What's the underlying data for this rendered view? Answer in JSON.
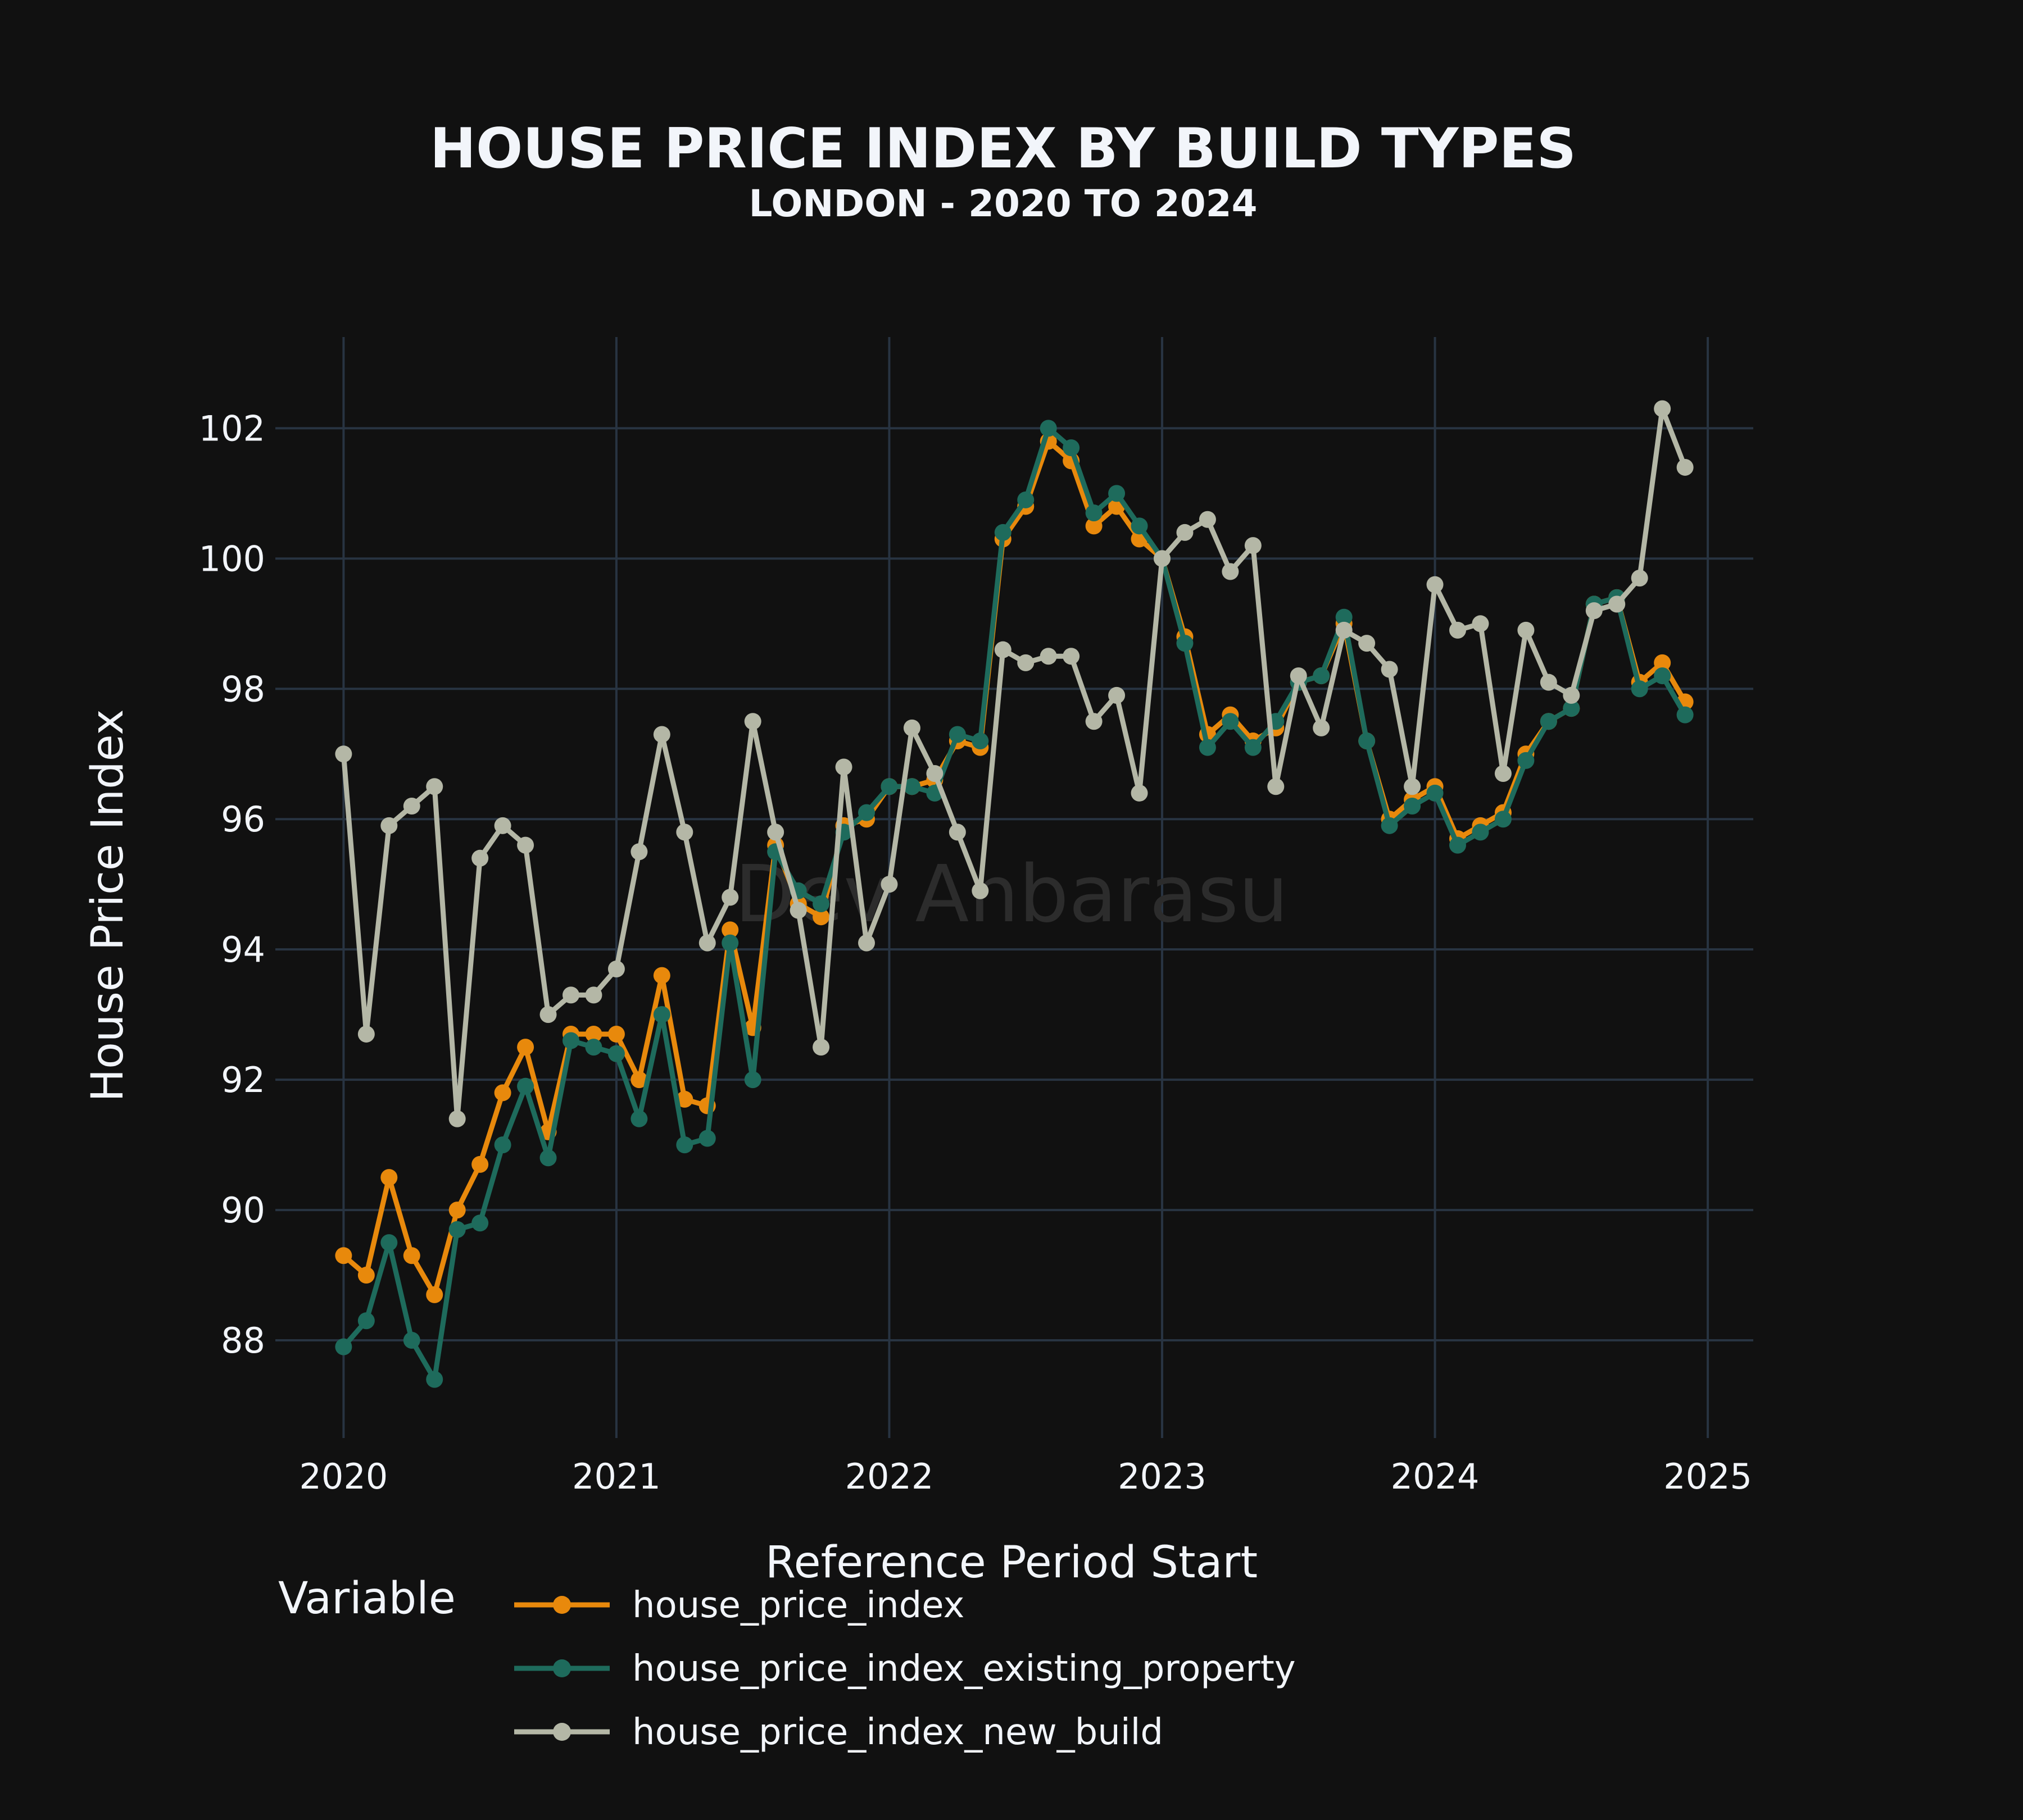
{
  "chart_data": {
    "type": "line",
    "title": "HOUSE PRICE INDEX BY BUILD TYPES",
    "subtitle": "LONDON - 2020 TO 2024",
    "xlabel": "Reference Period Start",
    "ylabel": "House Price Index",
    "legend_title": "Variable",
    "legend_position": "bottom",
    "watermark": "Dev Anbarasu",
    "grid": true,
    "x_ticks": [
      "2020",
      "2021",
      "2022",
      "2023",
      "2024",
      "2025"
    ],
    "y_ticks": [
      88,
      90,
      92,
      94,
      96,
      98,
      100,
      102
    ],
    "xlim": [
      "2019-10",
      "2025-03"
    ],
    "ylim": [
      86.5,
      103.4
    ],
    "x": [
      "2020-01",
      "2020-02",
      "2020-03",
      "2020-04",
      "2020-05",
      "2020-06",
      "2020-07",
      "2020-08",
      "2020-09",
      "2020-10",
      "2020-11",
      "2020-12",
      "2021-01",
      "2021-02",
      "2021-03",
      "2021-04",
      "2021-05",
      "2021-06",
      "2021-07",
      "2021-08",
      "2021-09",
      "2021-10",
      "2021-11",
      "2021-12",
      "2022-01",
      "2022-02",
      "2022-03",
      "2022-04",
      "2022-05",
      "2022-06",
      "2022-07",
      "2022-08",
      "2022-09",
      "2022-10",
      "2022-11",
      "2022-12",
      "2023-01",
      "2023-02",
      "2023-03",
      "2023-04",
      "2023-05",
      "2023-06",
      "2023-07",
      "2023-08",
      "2023-09",
      "2023-10",
      "2023-11",
      "2023-12",
      "2024-01",
      "2024-02",
      "2024-03",
      "2024-04",
      "2024-05",
      "2024-06",
      "2024-07",
      "2024-08",
      "2024-09",
      "2024-10",
      "2024-11",
      "2024-12"
    ],
    "series": [
      {
        "name": "house_price_index",
        "color": "#e8890c",
        "values": [
          89.3,
          89.0,
          90.5,
          89.3,
          88.7,
          90.0,
          90.7,
          91.8,
          92.5,
          91.2,
          92.7,
          92.7,
          92.7,
          92.0,
          93.6,
          91.7,
          91.6,
          94.3,
          92.8,
          95.6,
          94.7,
          94.5,
          95.9,
          96.0,
          96.5,
          96.5,
          96.6,
          97.2,
          97.1,
          100.3,
          100.8,
          101.8,
          101.5,
          100.5,
          100.8,
          100.3,
          100.0,
          98.8,
          97.3,
          97.6,
          97.2,
          97.4,
          98.1,
          98.2,
          99.0,
          97.2,
          96.0,
          96.3,
          96.5,
          95.7,
          95.9,
          96.1,
          97.0,
          97.5,
          97.7,
          99.3,
          99.4,
          98.1,
          98.4,
          97.8
        ]
      },
      {
        "name": "house_price_index_existing_property",
        "color": "#1e6b5c",
        "values": [
          87.9,
          88.3,
          89.5,
          88.0,
          87.4,
          89.7,
          89.8,
          91.0,
          91.9,
          90.8,
          92.6,
          92.5,
          92.4,
          91.4,
          93.0,
          91.0,
          91.1,
          94.1,
          92.0,
          95.5,
          94.9,
          94.7,
          95.8,
          96.1,
          96.5,
          96.5,
          96.4,
          97.3,
          97.2,
          100.4,
          100.9,
          102.0,
          101.7,
          100.7,
          101.0,
          100.5,
          100.0,
          98.7,
          97.1,
          97.5,
          97.1,
          97.5,
          98.1,
          98.2,
          99.1,
          97.2,
          95.9,
          96.2,
          96.4,
          95.6,
          95.8,
          96.0,
          96.9,
          97.5,
          97.7,
          99.3,
          99.4,
          98.0,
          98.2,
          97.6
        ]
      },
      {
        "name": "house_price_index_new_build",
        "color": "#b4b7a6",
        "values": [
          97.0,
          92.7,
          95.9,
          96.2,
          96.5,
          91.4,
          95.4,
          95.9,
          95.6,
          93.0,
          93.3,
          93.3,
          93.7,
          95.5,
          97.3,
          95.8,
          94.1,
          94.8,
          97.5,
          95.8,
          94.6,
          92.5,
          96.8,
          94.1,
          95.0,
          97.4,
          96.7,
          95.8,
          94.9,
          98.6,
          98.4,
          98.5,
          98.5,
          97.5,
          97.9,
          96.4,
          100.0,
          100.4,
          100.6,
          99.8,
          100.2,
          96.5,
          98.2,
          97.4,
          98.9,
          98.7,
          98.3,
          96.5,
          99.6,
          98.9,
          99.0,
          96.7,
          98.9,
          98.1,
          97.9,
          99.2,
          99.3,
          99.7,
          102.3,
          101.4
        ]
      }
    ]
  }
}
